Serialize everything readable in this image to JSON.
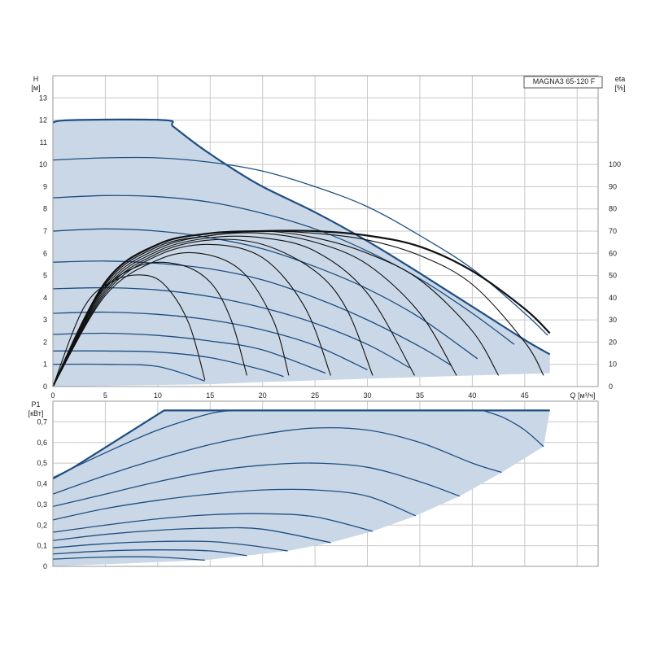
{
  "chart_data": [
    {
      "type": "line",
      "title": "MAGNA3 65-120 F",
      "ylabel": "H\n[м]",
      "y2label": "eta\n[%]",
      "xlabel": "Q [м³/ч]",
      "xlim": [
        0,
        52
      ],
      "ylim": [
        0,
        14
      ],
      "y2lim": [
        0,
        140
      ],
      "grid": true,
      "x_ticks": [
        0,
        5,
        10,
        15,
        20,
        25,
        30,
        35,
        40,
        45
      ],
      "y_ticks": [
        0,
        1,
        2,
        3,
        4,
        5,
        6,
        7,
        8,
        9,
        10,
        11,
        12,
        13
      ],
      "y2_ticks": [
        0,
        10,
        20,
        30,
        40,
        50,
        60,
        70,
        80,
        90,
        100
      ],
      "max_curve": {
        "x": [
          0,
          1.8,
          10.6,
          11.5,
          14,
          17,
          20,
          25,
          30,
          35,
          40,
          45,
          47.4
        ],
        "y": [
          11.9,
          12.0,
          12.0,
          11.7,
          10.8,
          9.85,
          9.0,
          7.85,
          6.55,
          5.1,
          3.6,
          2.1,
          1.45
        ]
      },
      "area_bottom": {
        "x": [
          47.4,
          30,
          20,
          14.5,
          0
        ],
        "y": [
          0.6,
          0.35,
          0.2,
          0.1,
          0
        ]
      },
      "speed_curves": [
        {
          "x": [
            0,
            5,
            10,
            15,
            20,
            25,
            30,
            35,
            40,
            45,
            47.2
          ],
          "y": [
            10.2,
            10.3,
            10.3,
            10.1,
            9.7,
            9.0,
            8.1,
            6.8,
            5.3,
            3.3,
            2.3
          ]
        },
        {
          "x": [
            0,
            5,
            10,
            15,
            20,
            25,
            30,
            35,
            40,
            44
          ],
          "y": [
            8.5,
            8.6,
            8.55,
            8.3,
            7.8,
            7.1,
            6.1,
            4.85,
            3.3,
            1.9
          ]
        },
        {
          "x": [
            0,
            5,
            10,
            15,
            20,
            25,
            30,
            35,
            40.5
          ],
          "y": [
            7.0,
            7.1,
            7.0,
            6.7,
            6.2,
            5.4,
            4.4,
            3.1,
            1.25
          ]
        },
        {
          "x": [
            0,
            5,
            10,
            15,
            20,
            25,
            30,
            35,
            38
          ],
          "y": [
            5.6,
            5.65,
            5.55,
            5.3,
            4.8,
            4.0,
            3.0,
            1.8,
            0.95
          ]
        },
        {
          "x": [
            0,
            5,
            10,
            15,
            20,
            25,
            30,
            34
          ],
          "y": [
            4.4,
            4.45,
            4.35,
            4.05,
            3.55,
            2.85,
            1.9,
            0.85
          ]
        },
        {
          "x": [
            0,
            5,
            10,
            15,
            20,
            25,
            30
          ],
          "y": [
            3.3,
            3.35,
            3.25,
            3.0,
            2.55,
            1.85,
            0.75
          ]
        },
        {
          "x": [
            0,
            5,
            10,
            15,
            20,
            26
          ],
          "y": [
            2.35,
            2.4,
            2.3,
            2.05,
            1.65,
            0.6
          ]
        },
        {
          "x": [
            0,
            5,
            10,
            15,
            20,
            22
          ],
          "y": [
            1.6,
            1.6,
            1.55,
            1.3,
            0.75,
            0.45
          ]
        },
        {
          "x": [
            0,
            5,
            10,
            14.5
          ],
          "y": [
            1.0,
            1.0,
            0.9,
            0.25
          ]
        }
      ],
      "efficiency_curves": [
        {
          "x": [
            0,
            3,
            6,
            9,
            11,
            13,
            14.5
          ],
          "y": [
            0,
            36,
            48,
            50,
            44,
            28,
            3
          ]
        },
        {
          "x": [
            0,
            4,
            8,
            12,
            15,
            17,
            18.5
          ],
          "y": [
            0,
            39,
            54,
            55,
            47,
            30,
            5
          ]
        },
        {
          "x": [
            0,
            5,
            10,
            14,
            18,
            21,
            22.5
          ],
          "y": [
            0,
            41,
            57,
            60,
            52,
            30,
            5
          ]
        },
        {
          "x": [
            0,
            5,
            10,
            15,
            20,
            24,
            26.5
          ],
          "y": [
            0,
            42,
            59,
            64,
            58,
            36,
            5
          ]
        },
        {
          "x": [
            0,
            5,
            10,
            15,
            20,
            25,
            28,
            30.5
          ],
          "y": [
            0,
            43,
            60,
            66,
            64,
            52,
            35,
            5
          ]
        },
        {
          "x": [
            0,
            5,
            10,
            15,
            20,
            25,
            30,
            34.5
          ],
          "y": [
            0,
            44,
            61,
            67,
            67,
            61,
            42,
            5
          ]
        },
        {
          "x": [
            0,
            5,
            10,
            15,
            20,
            25,
            30,
            35,
            38.5
          ],
          "y": [
            0,
            45,
            62,
            68,
            69,
            65,
            55,
            33,
            5
          ]
        },
        {
          "x": [
            0,
            5,
            10,
            15,
            20,
            25,
            30,
            35,
            40,
            42.5
          ],
          "y": [
            0,
            46,
            63,
            68,
            70,
            67,
            60,
            48,
            25,
            5
          ]
        },
        {
          "x": [
            0,
            5,
            10,
            15,
            20,
            25,
            30,
            35,
            40,
            45,
            46.8
          ],
          "y": [
            0,
            46,
            63,
            68,
            70,
            69,
            66,
            59,
            46,
            20,
            5
          ]
        }
      ],
      "efficiency_max": {
        "x": [
          0,
          5,
          10,
          15,
          20,
          25,
          30,
          35,
          40,
          45,
          47.4
        ],
        "y": [
          0,
          47,
          64,
          69,
          70,
          70,
          68,
          63,
          52,
          35,
          24
        ]
      }
    },
    {
      "type": "line",
      "ylabel": "P1\n[кВт]",
      "xlim": [
        0,
        52
      ],
      "ylim": [
        0,
        0.8
      ],
      "grid": true,
      "y_ticks": [
        "0",
        "0,1",
        "0,2",
        "0,3",
        "0,4",
        "0,5",
        "0,6",
        "0,7"
      ],
      "y_tick_values": [
        0,
        0.1,
        0.2,
        0.3,
        0.4,
        0.5,
        0.6,
        0.7
      ],
      "max_curve": {
        "x": [
          0,
          2,
          10.6,
          47.4,
          46.8
        ],
        "y": [
          0.425,
          0.48,
          0.755,
          0.755,
          0.58
        ]
      },
      "area_bottom": {
        "x": [
          46.8,
          42.8,
          38.8,
          34.6,
          30.5,
          26.5,
          22.4,
          18.5,
          14.5,
          0
        ],
        "y": [
          0.58,
          0.455,
          0.34,
          0.245,
          0.17,
          0.115,
          0.075,
          0.052,
          0.03,
          0
        ]
      },
      "power_curves": [
        {
          "x": [
            0,
            5,
            10,
            15,
            20,
            25,
            30,
            35,
            40,
            42.8
          ],
          "y": [
            0.35,
            0.44,
            0.52,
            0.59,
            0.64,
            0.67,
            0.66,
            0.6,
            0.5,
            0.455
          ]
        },
        {
          "x": [
            0,
            5,
            10,
            15,
            20,
            25,
            30,
            35,
            38.8
          ],
          "y": [
            0.29,
            0.35,
            0.41,
            0.46,
            0.49,
            0.5,
            0.48,
            0.41,
            0.34
          ]
        },
        {
          "x": [
            0,
            5,
            10,
            15,
            20,
            25,
            30,
            34.6
          ],
          "y": [
            0.225,
            0.28,
            0.32,
            0.35,
            0.37,
            0.37,
            0.34,
            0.245
          ]
        },
        {
          "x": [
            0,
            5,
            10,
            15,
            20,
            25,
            30.5
          ],
          "y": [
            0.165,
            0.2,
            0.23,
            0.25,
            0.255,
            0.24,
            0.17
          ]
        },
        {
          "x": [
            0,
            5,
            10,
            15,
            20,
            26.5
          ],
          "y": [
            0.125,
            0.155,
            0.175,
            0.185,
            0.18,
            0.115
          ]
        },
        {
          "x": [
            0,
            5,
            10,
            15,
            19,
            22.4
          ],
          "y": [
            0.09,
            0.11,
            0.12,
            0.12,
            0.1,
            0.075
          ]
        },
        {
          "x": [
            0,
            5,
            10,
            15,
            18.5
          ],
          "y": [
            0.06,
            0.075,
            0.08,
            0.075,
            0.052
          ]
        },
        {
          "x": [
            0,
            5,
            10,
            14.5
          ],
          "y": [
            0.035,
            0.045,
            0.045,
            0.03
          ]
        }
      ],
      "top_speed_curve": {
        "x": [
          0,
          5,
          10,
          15,
          17.5
        ],
        "y": [
          0.43,
          0.55,
          0.66,
          0.74,
          0.755
        ]
      },
      "top_right_curve": {
        "x": [
          41,
          43,
          45,
          46.8
        ],
        "y": [
          0.755,
          0.72,
          0.66,
          0.58
        ]
      }
    }
  ]
}
